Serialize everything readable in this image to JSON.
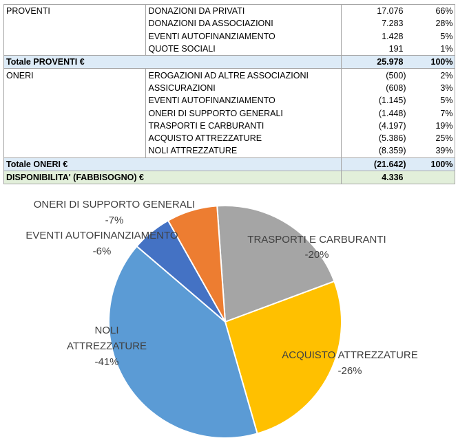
{
  "table": {
    "proventi": {
      "label": "PROVENTI",
      "items": [
        {
          "name": "DONAZIONI DA PRIVATI",
          "value": "17.076",
          "pct": "66%"
        },
        {
          "name": "DONAZIONI DA ASSOCIAZIONI",
          "value": "7.283",
          "pct": "28%"
        },
        {
          "name": "EVENTI AUTOFINANZIAMENTO",
          "value": "1.428",
          "pct": "5%"
        },
        {
          "name": "QUOTE SOCIALI",
          "value": "191",
          "pct": "1%"
        }
      ],
      "total_label": "Totale PROVENTI €",
      "total_value": "25.978",
      "total_pct": "100%"
    },
    "oneri": {
      "label": "ONERI",
      "items": [
        {
          "name": "EROGAZIONI AD ALTRE ASSOCIAZIONI",
          "value": "(500)",
          "pct": "2%"
        },
        {
          "name": "ASSICURAZIONI",
          "value": "(608)",
          "pct": "3%"
        },
        {
          "name": "EVENTI AUTOFINANZIAMENTO",
          "value": "(1.145)",
          "pct": "5%"
        },
        {
          "name": "ONERI DI SUPPORTO GENERALI",
          "value": "(1.448)",
          "pct": "7%"
        },
        {
          "name": "TRASPORTI E CARBURANTI",
          "value": "(4.197)",
          "pct": "19%"
        },
        {
          "name": "ACQUISTO ATTREZZATURE",
          "value": "(5.386)",
          "pct": "25%"
        },
        {
          "name": "NOLI ATTREZZATURE",
          "value": "(8.359)",
          "pct": "39%"
        }
      ],
      "total_label": "Totale ONERI €",
      "total_value": "(21.642)",
      "total_pct": "100%"
    },
    "disponibilita_label": "DISPONIBILITA' (FABBISOGNO) €",
    "disponibilita_value": "4.336"
  },
  "chart_data": {
    "type": "pie",
    "start_angle_deg": -4,
    "slices": [
      {
        "name": "TRASPORTI E CARBURANTI",
        "value": -4197,
        "label": "-20%",
        "color": "#a5a5a5"
      },
      {
        "name": "ACQUISTO ATTREZZATURE",
        "value": -5386,
        "label": "-26%",
        "color": "#ffc000"
      },
      {
        "name": "NOLI ATTREZZATURE",
        "value": -8359,
        "label": "-41%",
        "color": "#5b9bd5"
      },
      {
        "name": "EVENTI AUTOFINANZIAMENTO",
        "value": -1145,
        "label": "-6%",
        "color": "#4472c4"
      },
      {
        "name": "ONERI DI SUPPORTO GENERALI",
        "value": -1448,
        "label": "-7%",
        "color": "#ed7d31"
      }
    ]
  }
}
